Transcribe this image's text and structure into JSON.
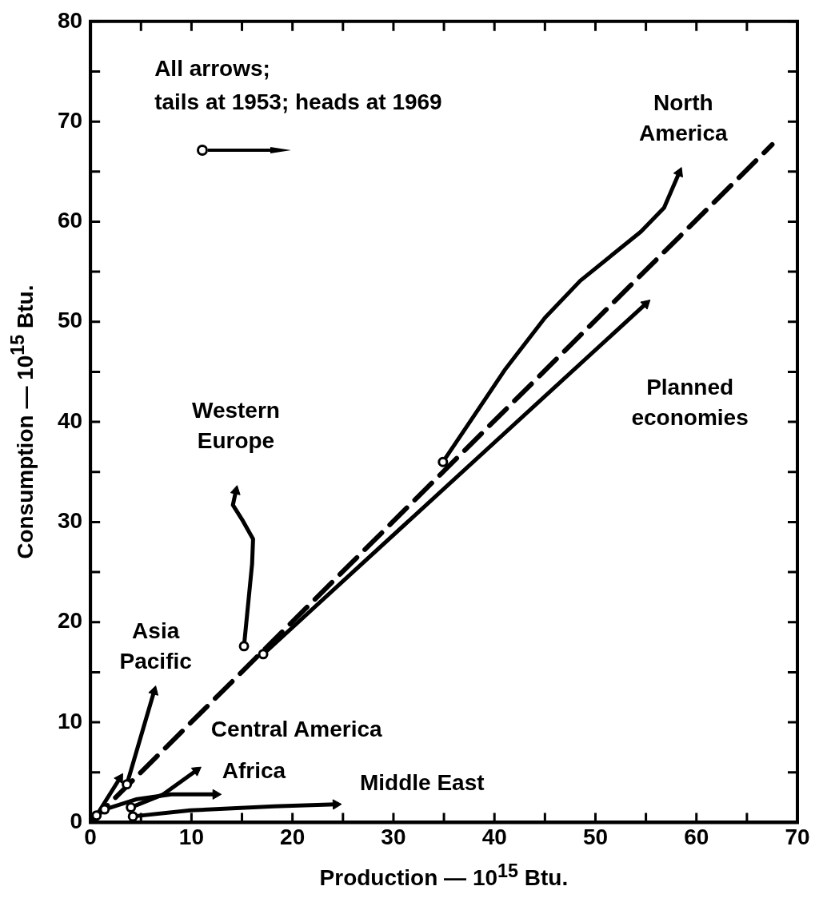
{
  "chart_data": {
    "type": "line",
    "xlabel": "Production — 10$^{15}$ Btu.",
    "ylabel": "Consumption — 10$^{15}$ Btu.",
    "annotations": [
      "All arrows;",
      "tails at 1953; heads at 1969"
    ],
    "xlim": [
      0,
      70
    ],
    "ylim": [
      0,
      80
    ],
    "xticks": [
      0,
      {
        "value": 5,
        "label": null
      },
      10,
      {
        "value": 15,
        "label": null
      },
      20,
      {
        "value": 25,
        "label": null
      },
      30,
      {
        "value": 35,
        "label": null
      },
      40,
      {
        "value": 45,
        "label": null
      },
      50,
      {
        "value": 55,
        "label": null
      },
      60,
      {
        "value": 65,
        "label": null
      },
      70
    ],
    "yticks": [
      0,
      {
        "value": 5,
        "label": null
      },
      10,
      {
        "value": 15,
        "label": null
      },
      20,
      {
        "value": 25,
        "label": null
      },
      30,
      {
        "value": 35,
        "label": null
      },
      40,
      {
        "value": 45,
        "label": null
      },
      50,
      {
        "value": 55,
        "label": null
      },
      60,
      {
        "value": 65,
        "label": null
      },
      70,
      {
        "value": 75,
        "label": null
      },
      80
    ],
    "grid": false,
    "legend": false,
    "line_style": "solid",
    "series": [
      {
        "name": "North America",
        "color": "#000000",
        "x": [
          34.9,
          41.1,
          45.0,
          48.5,
          54.5,
          56.8,
          58.3
        ],
        "values": [
          36.0,
          45.3,
          50.4,
          54.1,
          59.0,
          61.4,
          64.9
        ]
      },
      {
        "name": "Planned economies",
        "color": "#000000",
        "x": [
          17.1,
          55.0
        ],
        "values": [
          16.8,
          51.8
        ],
        "marker": "circle"
      },
      {
        "name": "Western Europe",
        "color": "#000000",
        "x": [
          15.2,
          16.0,
          16.1,
          15.1,
          14.1,
          14.4
        ],
        "values": [
          17.6,
          25.8,
          28.3,
          30.1,
          31.7,
          33.1
        ]
      },
      {
        "name": "Asia Pacific",
        "color": "#000000",
        "x": [
          3.6,
          6.3
        ],
        "values": [
          3.8,
          13.1
        ],
        "marker": "circle"
      },
      {
        "name": "Central America",
        "color": "#000000",
        "x": [
          4.0,
          7.2,
          10.5
        ],
        "values": [
          1.5,
          2.8,
          5.2
        ]
      },
      {
        "name": "Africa",
        "color": "#000000",
        "x": [
          1.4,
          4.5,
          8.0,
          12.4
        ],
        "values": [
          1.3,
          2.3,
          2.8,
          2.8
        ]
      },
      {
        "name": "Middle East",
        "color": "#000000",
        "x": [
          4.2,
          9.9,
          18.2,
          24.3
        ],
        "values": [
          0.6,
          1.2,
          1.6,
          1.8
        ]
      },
      {
        "color": "#000000",
        "x": [
          0.6,
          2.9
        ],
        "values": [
          0.7,
          4.4
        ],
        "marker": "circle"
      },
      {
        "color": "#000000",
        "x": [
          0,
          67.5
        ],
        "values": [
          0,
          67.7
        ],
        "line_style": "dashed"
      }
    ]
  }
}
